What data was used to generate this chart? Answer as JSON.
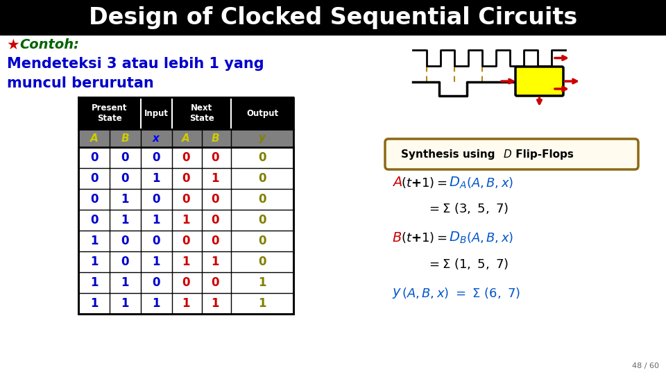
{
  "title": "Design of Clocked Sequential Circuits",
  "title_color": "#ffffff",
  "title_bg": "#000000",
  "subtitle_star": "★",
  "subtitle": "Contoh:",
  "subtitle_color_star": "#cc0000",
  "subtitle_color_text": "#006400",
  "description_line1": "Mendeteksi 3 atau lebih 1 yang",
  "description_line2": "muncul berurutan",
  "desc_color": "#0000cc",
  "bg_color": "#ffffff",
  "table_header_bg": "#000000",
  "table_header_color": "#ffffff",
  "table_subheader_bg": "#808080",
  "table_subheader_color_AB": "#cccc00",
  "table_subheader_color_x": "#0000ff",
  "table_subheader_color_y": "#808000",
  "table_data": [
    [
      0,
      0,
      0,
      0,
      0,
      0
    ],
    [
      0,
      0,
      1,
      0,
      1,
      0
    ],
    [
      0,
      1,
      0,
      0,
      0,
      0
    ],
    [
      0,
      1,
      1,
      1,
      0,
      0
    ],
    [
      1,
      0,
      0,
      0,
      0,
      0
    ],
    [
      1,
      0,
      1,
      1,
      1,
      0
    ],
    [
      1,
      1,
      0,
      0,
      0,
      1
    ],
    [
      1,
      1,
      1,
      1,
      1,
      1
    ]
  ],
  "col_A_color": "#0000cc",
  "col_B_color": "#0000cc",
  "col_x_color": "#0000cc",
  "col_nextA_color": "#cc0000",
  "col_nextB_color": "#cc0000",
  "col_y_color": "#808000",
  "synthesis_box_edge": "#8B6914",
  "synthesis_box_face": "#fffbee",
  "page_num": "48 / 60",
  "title_fontsize": 24,
  "title_bar_height": 50
}
